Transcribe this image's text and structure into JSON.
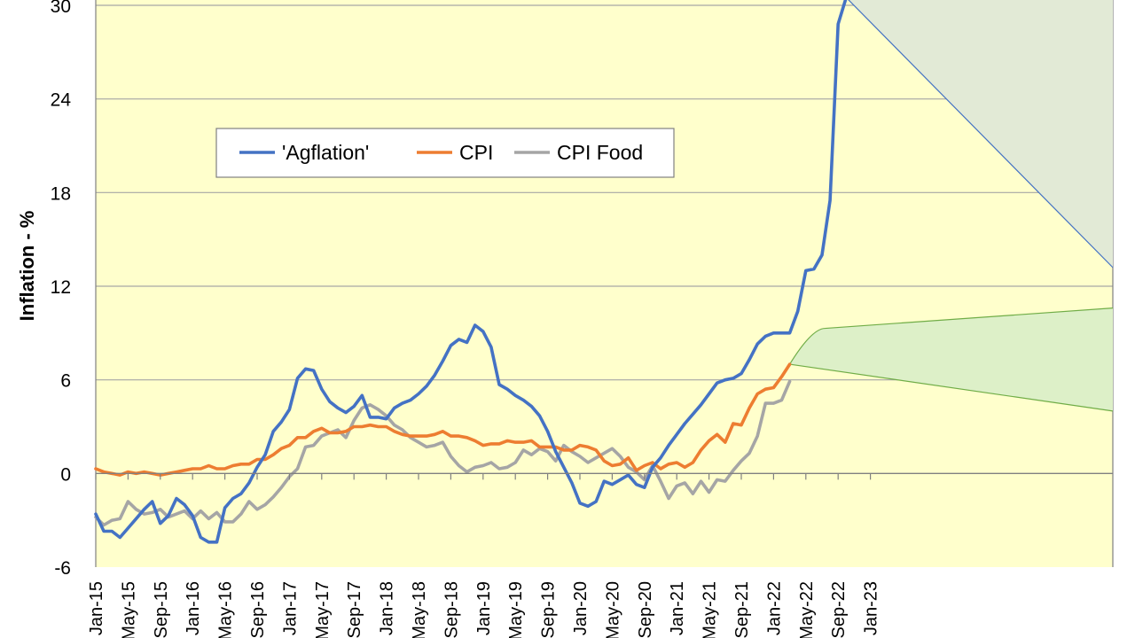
{
  "chart_data": {
    "type": "line",
    "ylabel": "Inflation - %",
    "ylim": [
      -6,
      30
    ],
    "yticks": [
      -6,
      0,
      6,
      12,
      18,
      24,
      30
    ],
    "xtick_labels": [
      "Jan-15",
      "May-15",
      "Sep-15",
      "Jan-16",
      "May-16",
      "Sep-16",
      "Jan-17",
      "May-17",
      "Sep-17",
      "Jan-18",
      "May-18",
      "Sep-18",
      "Jan-19",
      "May-19",
      "Sep-19",
      "Jan-20",
      "May-20",
      "Sep-20",
      "Jan-21",
      "May-21",
      "Sep-21",
      "Jan-22",
      "May-22",
      "Sep-22",
      "Jan-23"
    ],
    "x_start": "2015-01",
    "legend_position": "top-left",
    "colors": {
      "agflation": "#4472C4",
      "cpi": "#ED7D31",
      "cpi_food": "#A5A5A5",
      "plot_bg": "#FFFFCC",
      "grid": "#A6A6A6",
      "fan_agflation": "#E2EAD6",
      "fan_cpi": "#DDF0C8"
    },
    "series": [
      {
        "name": "'Agflation'",
        "key": "agflation",
        "values": [
          -2.6,
          -3.7,
          -3.7,
          -4.1,
          -3.5,
          -2.9,
          -2.3,
          -1.8,
          -3.2,
          -2.7,
          -1.6,
          -2.0,
          -2.7,
          -4.1,
          -4.4,
          -4.4,
          -2.2,
          -1.6,
          -1.3,
          -0.6,
          0.4,
          1.2,
          2.7,
          3.3,
          4.1,
          6.1,
          6.7,
          6.6,
          5.4,
          4.6,
          4.2,
          3.9,
          4.3,
          5.0,
          3.6,
          3.6,
          3.5,
          4.2,
          4.5,
          4.7,
          5.1,
          5.6,
          6.3,
          7.2,
          8.2,
          8.6,
          8.4,
          9.5,
          9.1,
          8.1,
          5.7,
          5.4,
          5.0,
          4.7,
          4.3,
          3.7,
          2.7,
          1.4,
          0.4,
          -0.6,
          -1.9,
          -2.1,
          -1.8,
          -0.5,
          -0.7,
          -0.4,
          -0.1,
          -0.7,
          -0.9,
          0.4,
          1.0,
          1.8,
          2.5,
          3.2,
          3.8,
          4.4,
          5.1,
          5.8,
          6.0,
          6.1,
          6.4,
          7.3,
          8.3,
          8.8,
          9.0,
          9.0,
          9.0,
          10.4,
          13.0,
          13.1,
          14.0,
          17.5,
          28.8,
          30.5
        ]
      },
      {
        "name": "CPI",
        "key": "cpi",
        "values": [
          0.3,
          0.1,
          0.0,
          -0.1,
          0.1,
          0.0,
          0.1,
          0.0,
          -0.1,
          0.0,
          0.1,
          0.2,
          0.3,
          0.3,
          0.5,
          0.3,
          0.3,
          0.5,
          0.6,
          0.6,
          0.9,
          0.9,
          1.2,
          1.6,
          1.8,
          2.3,
          2.3,
          2.7,
          2.9,
          2.6,
          2.6,
          2.7,
          3.0,
          3.0,
          3.1,
          3.0,
          3.0,
          2.7,
          2.5,
          2.4,
          2.4,
          2.4,
          2.5,
          2.7,
          2.4,
          2.4,
          2.3,
          2.1,
          1.8,
          1.9,
          1.9,
          2.1,
          2.0,
          2.0,
          2.1,
          1.7,
          1.7,
          1.7,
          1.5,
          1.5,
          1.8,
          1.7,
          1.5,
          0.8,
          0.5,
          0.6,
          1.0,
          0.2,
          0.5,
          0.7,
          0.3,
          0.6,
          0.7,
          0.4,
          0.7,
          1.5,
          2.1,
          2.5,
          2.0,
          3.2,
          3.1,
          4.2,
          5.1,
          5.4,
          5.5,
          6.2,
          7.0
        ]
      },
      {
        "name": "CPI Food",
        "key": "cpi_food",
        "values": [
          -2.8,
          -3.3,
          -3.0,
          -2.9,
          -1.8,
          -2.3,
          -2.6,
          -2.5,
          -2.3,
          -2.8,
          -2.6,
          -2.4,
          -2.9,
          -2.4,
          -2.9,
          -2.5,
          -3.1,
          -3.1,
          -2.6,
          -1.8,
          -2.3,
          -2.0,
          -1.5,
          -0.9,
          -0.2,
          0.3,
          1.7,
          1.8,
          2.4,
          2.6,
          2.8,
          2.3,
          3.4,
          4.2,
          4.4,
          4.1,
          3.7,
          3.1,
          2.8,
          2.3,
          2.0,
          1.7,
          1.8,
          2.0,
          1.1,
          0.5,
          0.1,
          0.4,
          0.5,
          0.7,
          0.3,
          0.4,
          0.7,
          1.5,
          1.2,
          1.6,
          1.4,
          0.8,
          1.8,
          1.4,
          1.1,
          0.7,
          1.0,
          1.3,
          1.6,
          1.1,
          0.4,
          0.1,
          -0.4,
          0.5,
          -0.5,
          -1.6,
          -0.8,
          -0.6,
          -1.3,
          -0.5,
          -1.2,
          -0.4,
          -0.5,
          0.2,
          0.8,
          1.3,
          2.4,
          4.5,
          4.5,
          4.7,
          5.9
        ]
      }
    ],
    "forecast_fans": [
      {
        "key": "agflation",
        "from_value": 30.5,
        "upper_end": 30.5,
        "lower_end": 13.2
      },
      {
        "key": "cpi",
        "from_value": 7.0,
        "upper_start": 9.3,
        "upper_end": 10.6,
        "lower_end": 4.0
      }
    ]
  }
}
